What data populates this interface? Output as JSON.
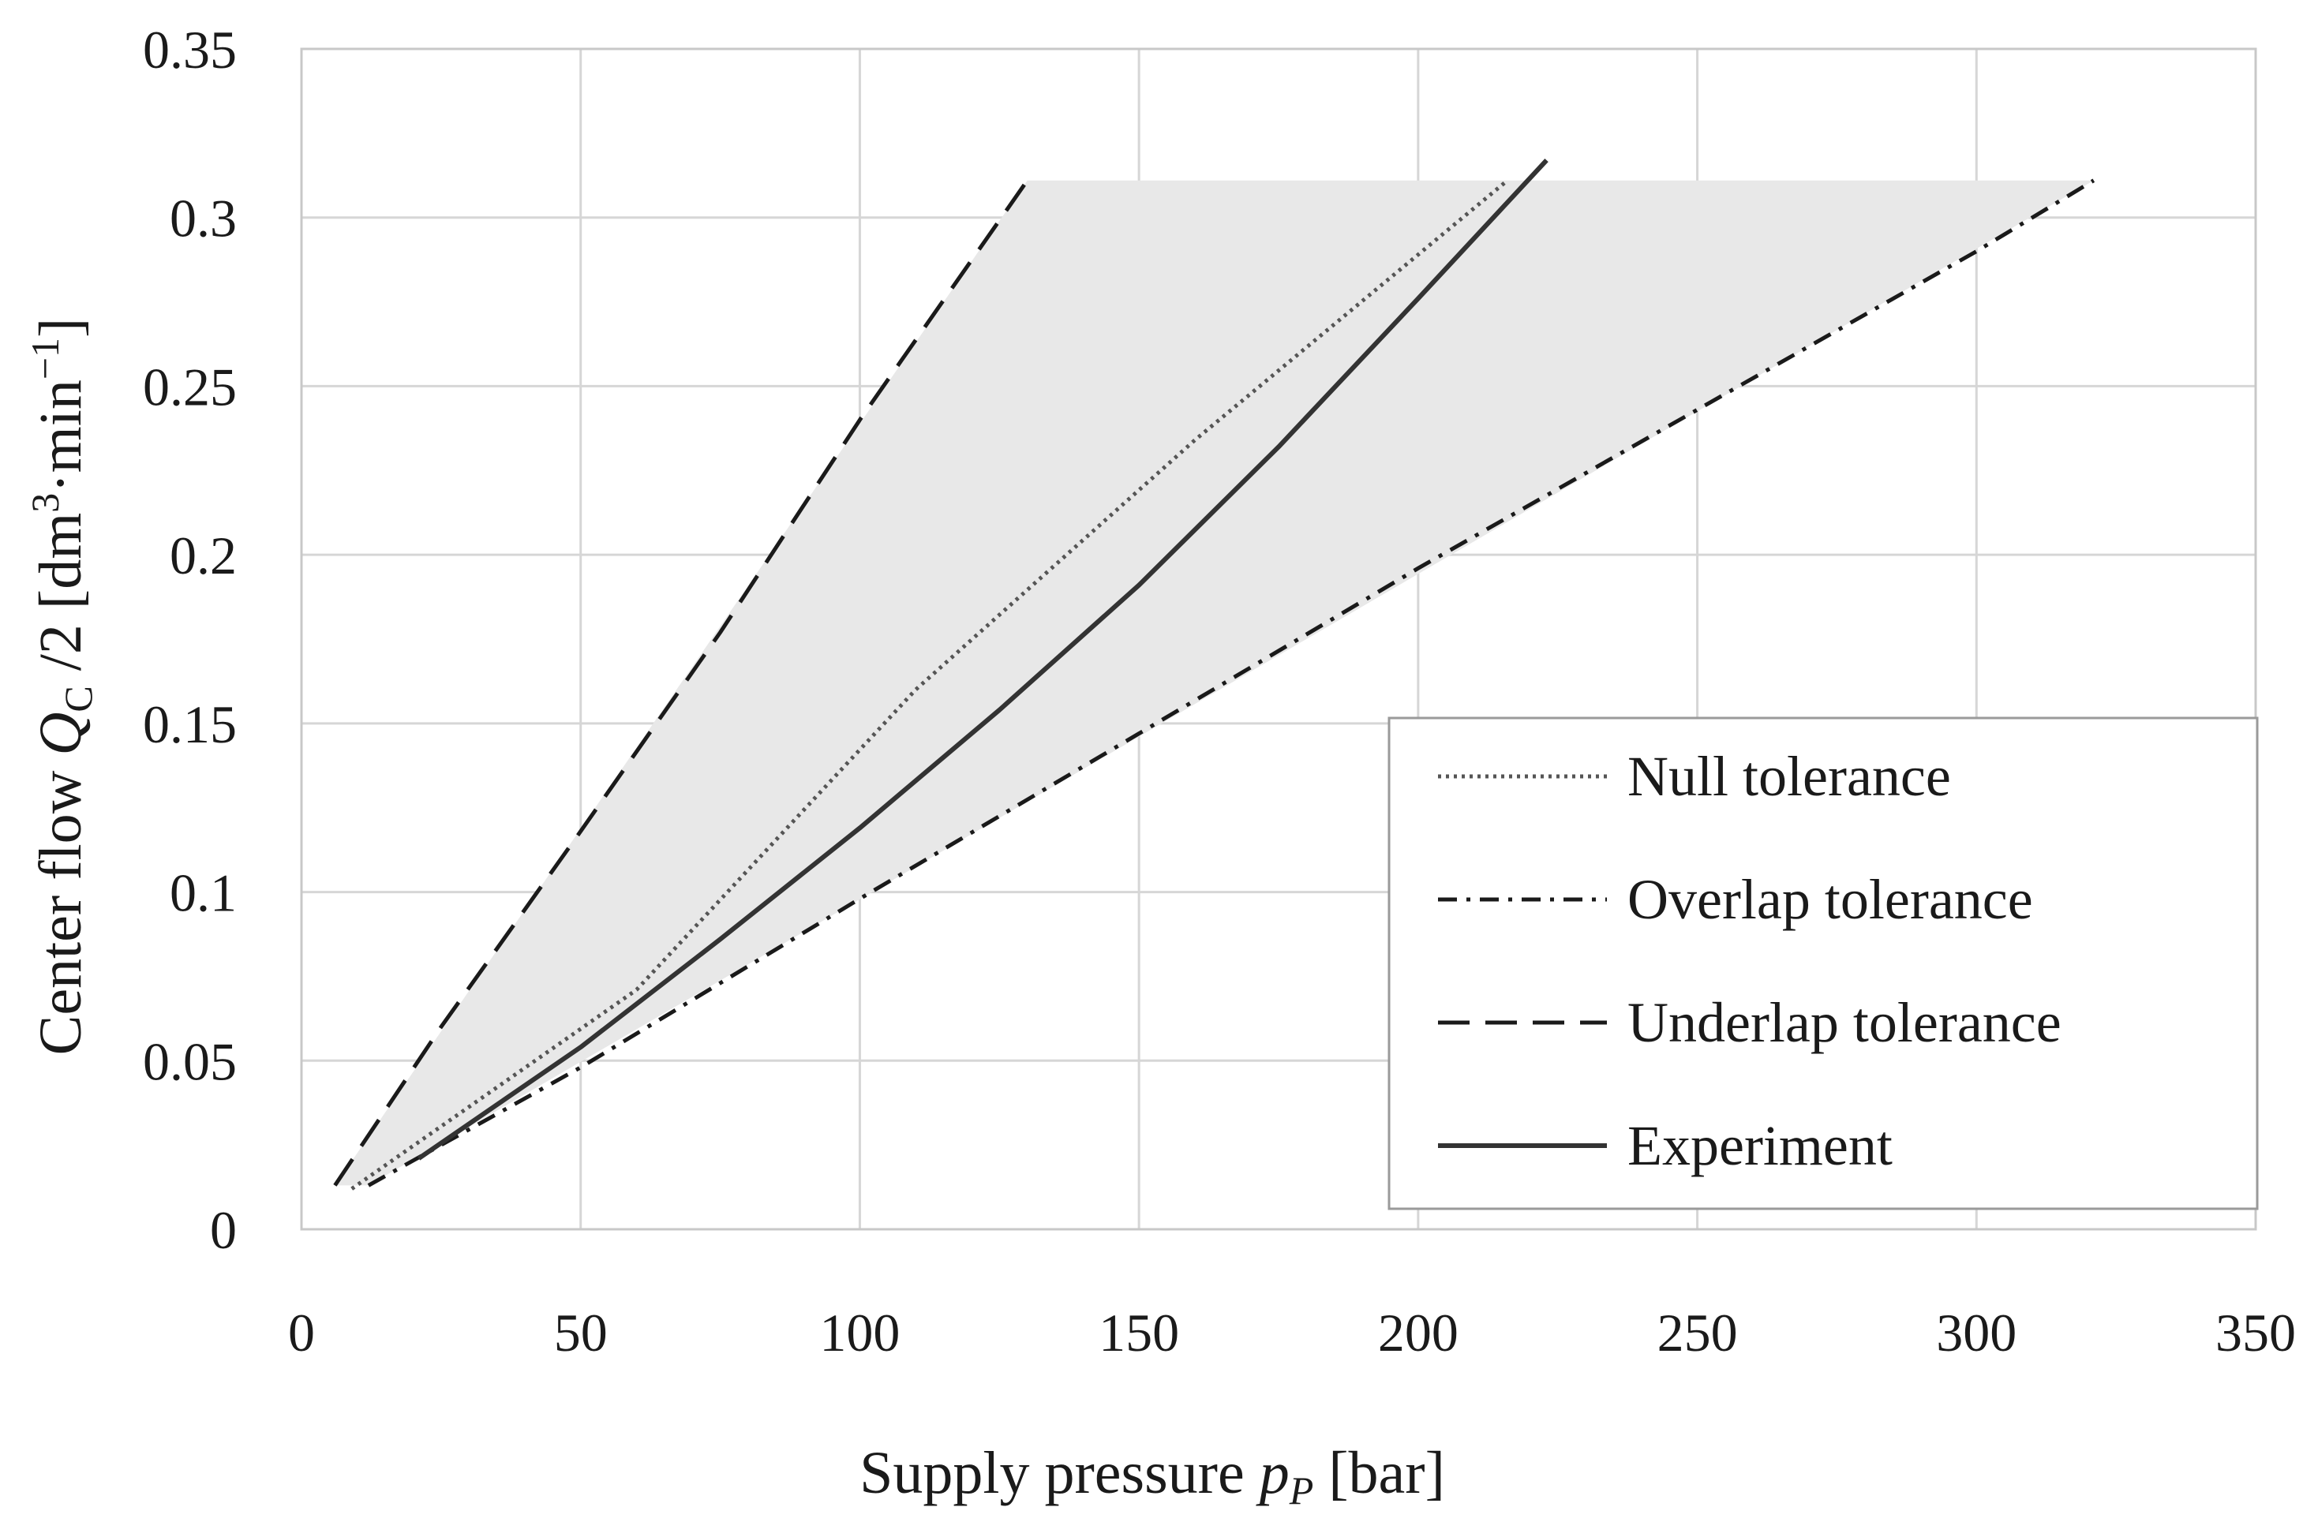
{
  "chart_data": {
    "type": "line",
    "title": "",
    "xlabel": {
      "main": "Supply pressure ",
      "italic": "p",
      "sub": "P",
      "unit": " [bar]"
    },
    "ylabel": {
      "main": "Center flow ",
      "italic": "Q",
      "sub": "C",
      "rest": " /2 [dm",
      "sup1": "3",
      "mid": "·min",
      "sup2": "−1",
      "end": "]"
    },
    "xlim": [
      0,
      350
    ],
    "ylim": [
      0,
      0.35
    ],
    "x_ticks": [
      0,
      50,
      100,
      150,
      200,
      250,
      300,
      350
    ],
    "x_tick_labels": [
      "0",
      "50",
      "100",
      "150",
      "200",
      "250",
      "300",
      "350"
    ],
    "y_ticks": [
      0,
      0.05,
      0.1,
      0.15,
      0.2,
      0.25,
      0.3,
      0.35
    ],
    "y_tick_labels": [
      "0",
      "0.05",
      "0.1",
      "0.15",
      "0.2",
      "0.25",
      "0.3",
      "0.35"
    ],
    "grid": true,
    "legend_position": "lower-right",
    "shaded_region": {
      "description": "tolerance band between underlap and overlap curves",
      "color": "#e8e8e8",
      "polygon": [
        [
          6,
          0.013
        ],
        [
          130,
          0.311
        ],
        [
          321,
          0.311
        ],
        [
          12,
          0.013
        ]
      ]
    },
    "series": [
      {
        "name": "Null tolerance",
        "style": "dotted",
        "color": "#555555",
        "x": [
          9,
          60,
          110,
          160,
          216
        ],
        "y": [
          0.012,
          0.071,
          0.16,
          0.234,
          0.311
        ]
      },
      {
        "name": "Overlap tolerance",
        "style": "dashdot",
        "color": "#1a1a1a",
        "x": [
          12,
          50,
          100,
          150,
          200,
          250,
          300,
          321
        ],
        "y": [
          0.013,
          0.048,
          0.098,
          0.147,
          0.196,
          0.243,
          0.29,
          0.311
        ]
      },
      {
        "name": "Underlap tolerance",
        "style": "dashed",
        "color": "#1a1a1a",
        "x": [
          6,
          25,
          50,
          75,
          100,
          130
        ],
        "y": [
          0.013,
          0.06,
          0.118,
          0.177,
          0.24,
          0.311
        ]
      },
      {
        "name": "Experiment",
        "style": "solid",
        "color": "#333333",
        "x": [
          21,
          50,
          75,
          100,
          125,
          150,
          175,
          200,
          223
        ],
        "y": [
          0.021,
          0.054,
          0.086,
          0.119,
          0.154,
          0.191,
          0.232,
          0.276,
          0.317
        ]
      }
    ]
  }
}
